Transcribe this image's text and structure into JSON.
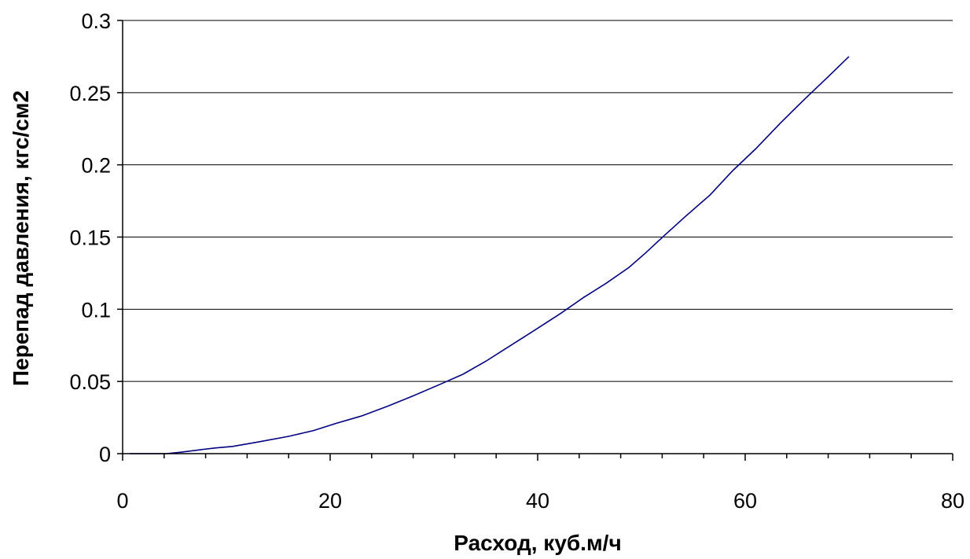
{
  "chart_data": {
    "type": "line",
    "title": "",
    "xlabel": "Расход, куб.м/ч",
    "ylabel": "Перепад давления, кгс/см2",
    "xlim": [
      0,
      80
    ],
    "ylim": [
      0,
      0.3
    ],
    "x_ticks": [
      "0",
      "20",
      "40",
      "60",
      "80"
    ],
    "y_ticks": [
      "0",
      "0.05",
      "0.1",
      "0.15",
      "0.2",
      "0.25",
      "0.3"
    ],
    "grid": "horizontal",
    "legend": "none",
    "series": [
      {
        "color": "#000080",
        "x": [
          0.7,
          4.2,
          5.6,
          7.8,
          9.0,
          10.6,
          13.0,
          16.0,
          18.4,
          20.6,
          23.0,
          25.6,
          28.0,
          30.6,
          32.8,
          35.0,
          37.2,
          39.6,
          42.2,
          44.4,
          46.6,
          48.8,
          50.4,
          52.2,
          54.2,
          56.6,
          58.8,
          61.0,
          63.4,
          65.8,
          68.0,
          70.0
        ],
        "y": [
          0.0,
          0.0,
          0.001,
          0.003,
          0.004,
          0.005,
          0.008,
          0.012,
          0.016,
          0.021,
          0.026,
          0.033,
          0.04,
          0.048,
          0.055,
          0.064,
          0.074,
          0.085,
          0.097,
          0.108,
          0.118,
          0.129,
          0.139,
          0.151,
          0.164,
          0.179,
          0.196,
          0.211,
          0.229,
          0.246,
          0.261,
          0.275
        ]
      }
    ]
  }
}
